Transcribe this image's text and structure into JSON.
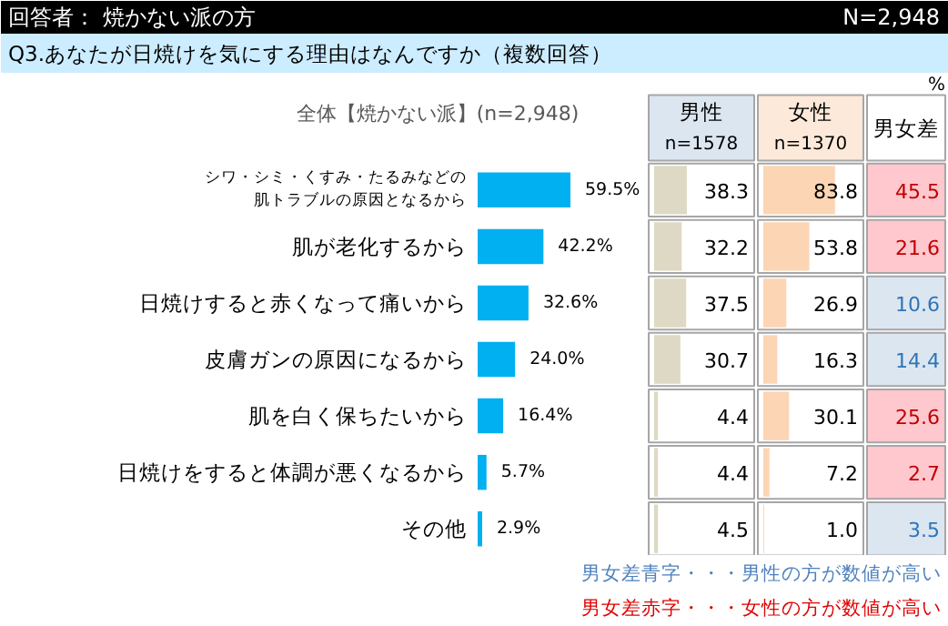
{
  "chart_data": [
    {
      "type": "bar",
      "orientation": "horizontal",
      "title": "Q3.あなたが日焼けを気にする理由はなんですか（複数回答）",
      "subtitle": "全体【焼かない派】(n=2,948)",
      "annotations": [
        "回答者： 焼かない派の方",
        "N=2,948"
      ],
      "categories": [
        "シワ・シミ・くすみ・たるみなどの肌トラブルの原因となるから",
        "肌が老化するから",
        "日焼けすると赤くなって痛いから",
        "皮膚ガンの原因になるから",
        "肌を白く保ちたいから",
        "日焼けをすると体調が悪くなるから",
        "その他"
      ],
      "values": [
        59.5,
        42.2,
        32.6,
        24.0,
        16.4,
        5.7,
        2.9
      ],
      "value_labels": [
        "59.5%",
        "42.2%",
        "32.6%",
        "24.0%",
        "16.4%",
        "5.7%",
        "2.9%"
      ],
      "color": "#00b0f0"
    },
    {
      "type": "bar",
      "orientation": "horizontal",
      "title": "男性",
      "subtitle": "n=1578",
      "categories": [
        null,
        null,
        null,
        null,
        null,
        null,
        null
      ],
      "values": [
        38.3,
        32.2,
        37.5,
        30.7,
        4.4,
        4.4,
        4.5
      ],
      "value_labels": [
        "38.3",
        "32.2",
        "37.5",
        "30.7",
        "4.4",
        "4.4",
        "4.5"
      ],
      "color": "#ddd9c4"
    },
    {
      "type": "bar",
      "orientation": "horizontal",
      "title": "女性",
      "subtitle": "n=1370",
      "categories": [
        null,
        null,
        null,
        null,
        null,
        null,
        null
      ],
      "values": [
        83.8,
        53.8,
        26.9,
        16.3,
        30.1,
        7.2,
        1.0
      ],
      "value_labels": [
        "83.8",
        "53.8",
        "26.9",
        "16.3",
        "30.1",
        "7.2",
        "1.0"
      ],
      "color": "#fcd5b4"
    },
    {
      "type": "other",
      "title": "男女差",
      "annotations": [
        "%",
        "男女差青字・・・男性の方が数値が高い",
        "男女差赤字・・・女性の方が数値が高い"
      ],
      "categories": [
        null,
        null,
        null,
        null,
        null,
        null,
        null
      ],
      "values": [
        45.5,
        21.6,
        10.6,
        14.4,
        25.6,
        2.7,
        3.5
      ],
      "value_labels": [
        "45.5",
        "21.6",
        "10.6",
        "14.4",
        "25.6",
        "2.7",
        "3.5"
      ],
      "colors": [
        "#ffc7ce",
        "#ffc7ce",
        "#dce6f1",
        "#dce6f1",
        "#ffc7ce",
        "#ffc7ce",
        "#dce6f1"
      ]
    }
  ]
}
